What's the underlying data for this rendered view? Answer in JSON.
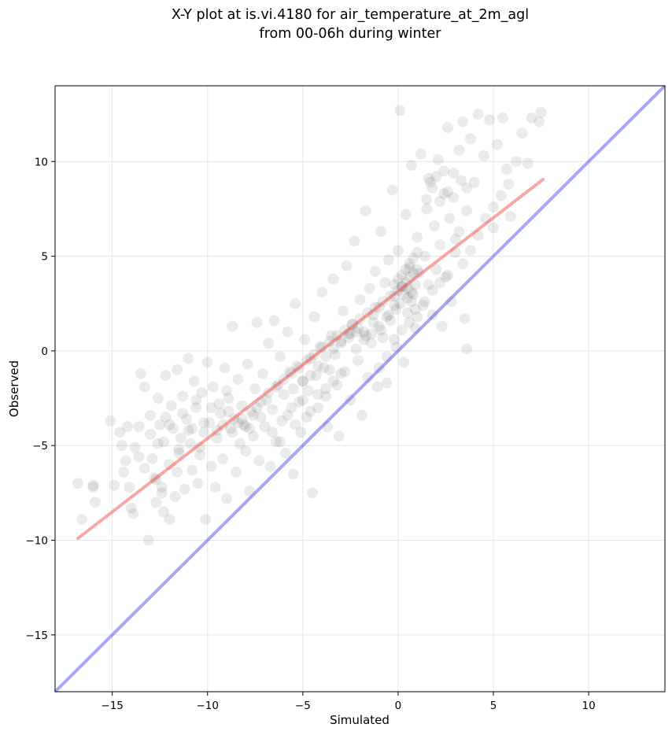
{
  "chart_data": {
    "type": "scatter",
    "title": "X-Y plot at is.vi.4180 for air_temperature_at_2m_agl",
    "subtitle": "from 00-06h during winter",
    "xlabel": "Simulated",
    "ylabel": "Observed",
    "xlim": [
      -18,
      14
    ],
    "ylim": [
      -18,
      14
    ],
    "xticks": [
      -15,
      -10,
      -5,
      0,
      5,
      10
    ],
    "yticks": [
      -15,
      -10,
      -5,
      0,
      5,
      10
    ],
    "xtick_labels": [
      "−15",
      "−10",
      "−5",
      "0",
      "5",
      "10"
    ],
    "ytick_labels": [
      "−15",
      "−10",
      "−5",
      "0",
      "5",
      "10"
    ],
    "grid": true,
    "colors": {
      "points": "#000000",
      "one_to_one": "#3b3bef",
      "fit": "#ef3b3b"
    },
    "point_alpha": 0.08,
    "one_to_one_line": [
      [
        -18,
        -18
      ],
      [
        14,
        14
      ]
    ],
    "fit_line": [
      [
        -16.8,
        -9.9
      ],
      [
        7.6,
        9.05
      ]
    ],
    "points": [
      [
        -16.8,
        -7.0
      ],
      [
        -16.6,
        -8.9
      ],
      [
        -16.0,
        -7.2
      ],
      [
        -15.9,
        -8.0
      ],
      [
        -15.1,
        -3.7
      ],
      [
        -14.9,
        -7.1
      ],
      [
        -14.6,
        -4.3
      ],
      [
        -14.5,
        -5.0
      ],
      [
        -14.4,
        -6.4
      ],
      [
        -14.3,
        -5.8
      ],
      [
        -14.1,
        -7.2
      ],
      [
        -14.0,
        -8.3
      ],
      [
        -13.9,
        -8.6
      ],
      [
        -13.6,
        -4.0
      ],
      [
        -13.5,
        -1.2
      ],
      [
        -13.3,
        -6.2
      ],
      [
        -13.3,
        -1.9
      ],
      [
        -13.1,
        -10.0
      ],
      [
        -13.0,
        -3.4
      ],
      [
        -12.9,
        -5.7
      ],
      [
        -12.7,
        -8.0
      ],
      [
        -12.7,
        -6.8
      ],
      [
        -12.6,
        -2.5
      ],
      [
        -12.5,
        -3.9
      ],
      [
        -12.4,
        -7.2
      ],
      [
        -12.3,
        -8.5
      ],
      [
        -12.3,
        -4.8
      ],
      [
        -12.2,
        -1.3
      ],
      [
        -12.0,
        -6.0
      ],
      [
        -12.0,
        -8.9
      ],
      [
        -11.9,
        -2.9
      ],
      [
        -11.8,
        -4.1
      ],
      [
        -11.7,
        -7.7
      ],
      [
        -11.6,
        -6.4
      ],
      [
        -11.6,
        -1.0
      ],
      [
        -11.5,
        -5.2
      ],
      [
        -11.3,
        -2.4
      ],
      [
        -11.2,
        -7.3
      ],
      [
        -11.1,
        -3.6
      ],
      [
        -11.0,
        -0.4
      ],
      [
        -10.9,
        -4.9
      ],
      [
        -10.8,
        -6.3
      ],
      [
        -10.7,
        -1.6
      ],
      [
        -10.6,
        -3.0
      ],
      [
        -10.5,
        -7.0
      ],
      [
        -10.4,
        -5.5
      ],
      [
        -10.3,
        -2.2
      ],
      [
        -10.2,
        -4.3
      ],
      [
        -10.1,
        -8.9
      ],
      [
        -10.0,
        -0.6
      ],
      [
        -9.9,
        -3.8
      ],
      [
        -9.8,
        -6.1
      ],
      [
        -9.7,
        -1.9
      ],
      [
        -9.6,
        -7.2
      ],
      [
        -9.5,
        -4.6
      ],
      [
        -9.4,
        -2.8
      ],
      [
        -9.3,
        -3.3
      ],
      [
        -9.2,
        -5.7
      ],
      [
        -9.1,
        -0.9
      ],
      [
        -9.0,
        -7.8
      ],
      [
        -8.9,
        -2.5
      ],
      [
        -8.8,
        -4.1
      ],
      [
        -8.7,
        1.3
      ],
      [
        -8.6,
        -3.6
      ],
      [
        -8.5,
        -6.4
      ],
      [
        -8.4,
        -1.5
      ],
      [
        -8.3,
        -4.9
      ],
      [
        -8.2,
        -2.9
      ],
      [
        -8.1,
        -3.9
      ],
      [
        -8.0,
        -5.3
      ],
      [
        -7.9,
        -0.7
      ],
      [
        -7.8,
        -7.4
      ],
      [
        -7.7,
        -3.2
      ],
      [
        -7.6,
        -4.5
      ],
      [
        -7.5,
        -2.0
      ],
      [
        -7.4,
        1.5
      ],
      [
        -7.3,
        -5.8
      ],
      [
        -7.2,
        -3.5
      ],
      [
        -7.1,
        -1.2
      ],
      [
        -7.0,
        -4.0
      ],
      [
        -6.9,
        -2.6
      ],
      [
        -6.8,
        0.4
      ],
      [
        -6.7,
        -6.1
      ],
      [
        -6.6,
        -3.1
      ],
      [
        -6.5,
        1.6
      ],
      [
        -6.4,
        -4.8
      ],
      [
        -6.3,
        -1.8
      ],
      [
        -6.2,
        -0.3
      ],
      [
        -6.1,
        -3.7
      ],
      [
        -6.0,
        -2.3
      ],
      [
        -5.9,
        -5.4
      ],
      [
        -5.8,
        1.0
      ],
      [
        -5.7,
        -1.1
      ],
      [
        -5.6,
        -3.0
      ],
      [
        -5.5,
        -6.5
      ],
      [
        -5.4,
        2.5
      ],
      [
        -5.3,
        -0.8
      ],
      [
        -5.2,
        -2.7
      ],
      [
        -5.1,
        -4.3
      ],
      [
        -5.0,
        -1.6
      ],
      [
        -4.9,
        0.6
      ],
      [
        -4.8,
        -3.5
      ],
      [
        -4.7,
        -2.1
      ],
      [
        -4.6,
        -0.4
      ],
      [
        -4.5,
        -7.5
      ],
      [
        -4.4,
        1.8
      ],
      [
        -4.3,
        -1.3
      ],
      [
        -4.2,
        -3.0
      ],
      [
        -4.1,
        0.2
      ],
      [
        -4.0,
        3.1
      ],
      [
        -3.9,
        -0.9
      ],
      [
        -3.8,
        -2.4
      ],
      [
        -3.7,
        -4.0
      ],
      [
        -3.6,
        -1.0
      ],
      [
        -3.5,
        0.8
      ],
      [
        -3.4,
        3.8
      ],
      [
        -3.3,
        -0.2
      ],
      [
        -3.2,
        -1.8
      ],
      [
        -3.1,
        -4.5
      ],
      [
        -3.0,
        0.5
      ],
      [
        -2.9,
        2.1
      ],
      [
        -2.8,
        -1.1
      ],
      [
        -2.7,
        4.5
      ],
      [
        -2.6,
        0.9
      ],
      [
        -2.5,
        -2.6
      ],
      [
        -2.4,
        1.4
      ],
      [
        -2.3,
        5.8
      ],
      [
        -2.2,
        0.1
      ],
      [
        -2.1,
        -0.5
      ],
      [
        -2.0,
        2.7
      ],
      [
        -1.9,
        -3.4
      ],
      [
        -1.8,
        1.0
      ],
      [
        -1.7,
        7.4
      ],
      [
        -1.6,
        -1.4
      ],
      [
        -1.5,
        3.3
      ],
      [
        -1.4,
        0.4
      ],
      [
        -1.3,
        1.9
      ],
      [
        -1.2,
        4.2
      ],
      [
        -1.1,
        -1.9
      ],
      [
        -1.0,
        2.3
      ],
      [
        -0.9,
        6.3
      ],
      [
        -0.8,
        0.7
      ],
      [
        -0.7,
        3.6
      ],
      [
        -0.6,
        -1.7
      ],
      [
        -0.5,
        4.8
      ],
      [
        -0.4,
        1.6
      ],
      [
        -0.3,
        8.5
      ],
      [
        -0.2,
        2.9
      ],
      [
        -0.1,
        0.2
      ],
      [
        0.0,
        5.3
      ],
      [
        0.1,
        12.7
      ],
      [
        0.2,
        3.4
      ],
      [
        0.3,
        -0.6
      ],
      [
        0.4,
        7.2
      ],
      [
        0.5,
        2.0
      ],
      [
        0.6,
        4.4
      ],
      [
        0.7,
        9.8
      ],
      [
        0.8,
        3.0
      ],
      [
        0.9,
        1.2
      ],
      [
        1.0,
        6.0
      ],
      [
        1.1,
        4.1
      ],
      [
        1.2,
        10.4
      ],
      [
        1.3,
        2.4
      ],
      [
        1.4,
        5.0
      ],
      [
        1.5,
        7.5
      ],
      [
        1.6,
        3.5
      ],
      [
        1.7,
        8.9
      ],
      [
        1.8,
        1.9
      ],
      [
        1.9,
        6.6
      ],
      [
        2.0,
        4.3
      ],
      [
        2.1,
        10.1
      ],
      [
        2.2,
        5.6
      ],
      [
        2.3,
        1.3
      ],
      [
        2.4,
        8.3
      ],
      [
        2.5,
        3.9
      ],
      [
        2.6,
        11.8
      ],
      [
        2.7,
        7.0
      ],
      [
        2.8,
        2.6
      ],
      [
        2.9,
        9.4
      ],
      [
        3.0,
        5.9
      ],
      [
        3.2,
        10.6
      ],
      [
        3.4,
        12.1
      ],
      [
        3.5,
        1.7
      ],
      [
        3.6,
        0.1
      ],
      [
        3.8,
        11.2
      ],
      [
        4.0,
        8.9
      ],
      [
        4.2,
        12.5
      ],
      [
        4.5,
        10.3
      ],
      [
        4.8,
        12.2
      ],
      [
        5.0,
        6.5
      ],
      [
        5.2,
        10.9
      ],
      [
        5.5,
        12.3
      ],
      [
        5.7,
        9.6
      ],
      [
        5.9,
        7.1
      ],
      [
        6.2,
        10.0
      ],
      [
        6.5,
        11.5
      ],
      [
        7.0,
        12.3
      ],
      [
        7.5,
        12.6
      ],
      [
        7.4,
        12.1
      ],
      [
        6.8,
        9.9
      ],
      [
        -16.0,
        -7.1
      ],
      [
        -13.8,
        -5.1
      ],
      [
        -12.2,
        -3.5
      ],
      [
        -11.4,
        -4.6
      ],
      [
        -10.6,
        -2.6
      ],
      [
        -9.8,
        -3.0
      ],
      [
        -9.0,
        -2.1
      ],
      [
        -8.4,
        -3.8
      ],
      [
        -8.0,
        -4.0
      ],
      [
        -7.6,
        -3.4
      ],
      [
        -7.2,
        -2.7
      ],
      [
        -6.8,
        -2.2
      ],
      [
        -6.4,
        -1.9
      ],
      [
        -6.0,
        -1.5
      ],
      [
        -5.6,
        -1.2
      ],
      [
        -5.2,
        -0.9
      ],
      [
        -4.8,
        -0.5
      ],
      [
        -4.4,
        -0.2
      ],
      [
        -4.0,
        0.2
      ],
      [
        -3.6,
        0.5
      ],
      [
        -3.2,
        0.8
      ],
      [
        -2.8,
        1.1
      ],
      [
        -2.4,
        1.4
      ],
      [
        -2.0,
        1.7
      ],
      [
        -1.6,
        2.0
      ],
      [
        -1.2,
        2.3
      ],
      [
        -0.8,
        2.6
      ],
      [
        -0.4,
        2.9
      ],
      [
        0.0,
        3.2
      ],
      [
        0.2,
        3.4
      ],
      [
        0.4,
        3.6
      ],
      [
        0.6,
        3.9
      ],
      [
        0.8,
        4.1
      ],
      [
        1.0,
        4.3
      ],
      [
        0.3,
        3.0
      ],
      [
        0.5,
        2.8
      ],
      [
        0.7,
        3.1
      ],
      [
        0.9,
        3.5
      ],
      [
        0.1,
        2.5
      ],
      [
        -0.1,
        2.2
      ],
      [
        0.4,
        4.3
      ],
      [
        0.6,
        4.6
      ],
      [
        0.8,
        4.9
      ],
      [
        1.0,
        5.2
      ],
      [
        0.2,
        4.0
      ],
      [
        0.0,
        3.8
      ],
      [
        -0.2,
        3.5
      ],
      [
        0.5,
        3.3
      ],
      [
        0.7,
        2.6
      ],
      [
        0.9,
        2.2
      ],
      [
        -9.2,
        -3.9
      ],
      [
        -8.7,
        -4.3
      ],
      [
        -8.2,
        -3.6
      ],
      [
        -7.8,
        -4.1
      ],
      [
        -7.4,
        -3.0
      ],
      [
        -8.9,
        -3.2
      ],
      [
        -9.5,
        -4.2
      ],
      [
        -10.2,
        -3.8
      ],
      [
        -10.8,
        -4.1
      ],
      [
        -11.3,
        -3.3
      ],
      [
        -5.5,
        -2.0
      ],
      [
        -5.0,
        -1.6
      ],
      [
        -4.6,
        -1.3
      ],
      [
        -4.2,
        -0.8
      ],
      [
        -3.8,
        -0.3
      ],
      [
        -3.4,
        0.1
      ],
      [
        -3.0,
        0.4
      ],
      [
        -2.6,
        0.7
      ],
      [
        -2.2,
        1.0
      ],
      [
        -1.8,
        0.6
      ],
      [
        -1.4,
        0.9
      ],
      [
        -1.0,
        1.3
      ],
      [
        -0.6,
        1.8
      ],
      [
        -0.2,
        2.4
      ],
      [
        -2.5,
        0.9
      ],
      [
        -2.1,
        1.2
      ],
      [
        -1.7,
        0.8
      ],
      [
        -1.3,
        1.5
      ],
      [
        -0.9,
        1.1
      ],
      [
        -0.5,
        1.9
      ],
      [
        1.5,
        8.0
      ],
      [
        1.8,
        8.6
      ],
      [
        2.2,
        7.9
      ],
      [
        2.6,
        8.4
      ],
      [
        2.9,
        8.1
      ],
      [
        3.3,
        9.0
      ],
      [
        3.6,
        8.6
      ],
      [
        2.4,
        9.5
      ],
      [
        2.0,
        9.2
      ],
      [
        1.6,
        9.1
      ],
      [
        -13.0,
        -4.4
      ],
      [
        -12.6,
        -4.9
      ],
      [
        -12.0,
        -3.9
      ],
      [
        -11.5,
        -5.4
      ],
      [
        -11.0,
        -4.2
      ],
      [
        -10.4,
        -5.1
      ],
      [
        -14.2,
        -4.0
      ],
      [
        -13.6,
        -5.6
      ],
      [
        -12.8,
        -6.7
      ],
      [
        -12.4,
        -7.5
      ],
      [
        -6.6,
        -4.3
      ],
      [
        -6.2,
        -4.8
      ],
      [
        -5.8,
        -3.4
      ],
      [
        -5.4,
        -3.9
      ],
      [
        -5.0,
        -2.6
      ],
      [
        -4.6,
        -3.2
      ],
      [
        -4.2,
        -2.3
      ],
      [
        -3.8,
        -2.0
      ],
      [
        -3.4,
        -1.6
      ],
      [
        -3.0,
        -1.2
      ],
      [
        -1.0,
        -0.9
      ],
      [
        -0.6,
        -0.3
      ],
      [
        -0.2,
        0.6
      ],
      [
        0.2,
        1.1
      ],
      [
        0.6,
        1.5
      ],
      [
        1.0,
        1.8
      ],
      [
        1.4,
        2.6
      ],
      [
        1.8,
        3.2
      ],
      [
        2.2,
        3.6
      ],
      [
        2.6,
        4.0
      ],
      [
        3.0,
        5.2
      ],
      [
        3.4,
        4.6
      ],
      [
        3.8,
        5.3
      ],
      [
        4.2,
        6.1
      ],
      [
        4.6,
        7.0
      ],
      [
        5.0,
        7.6
      ],
      [
        5.4,
        8.2
      ],
      [
        5.8,
        8.8
      ],
      [
        3.2,
        6.3
      ],
      [
        3.6,
        7.4
      ]
    ]
  }
}
